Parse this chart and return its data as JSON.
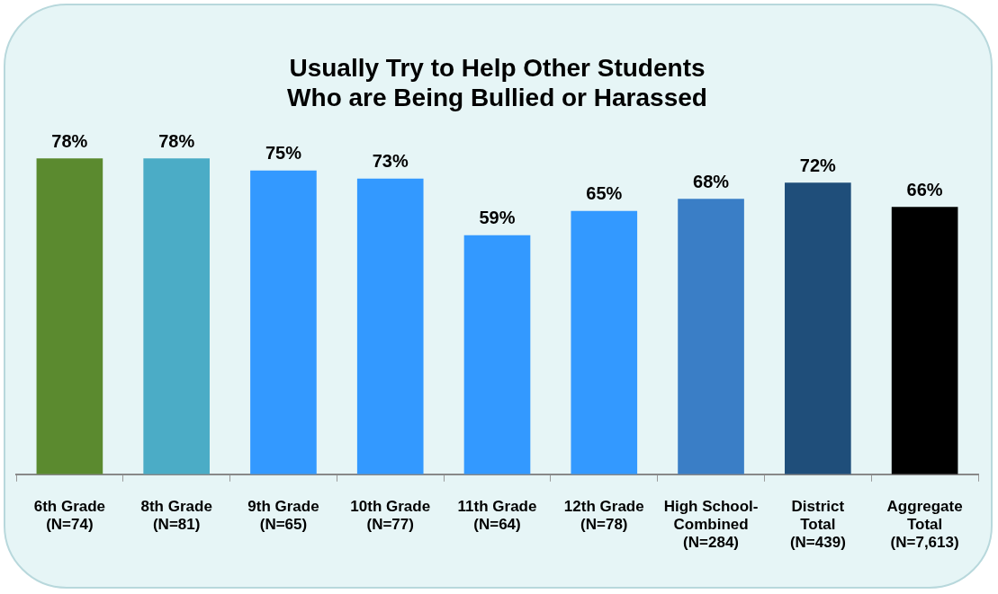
{
  "chart_data": {
    "type": "bar",
    "title": "Usually Try to Help Other Students\nWho are Being Bullied or Harassed",
    "categories": [
      "6th Grade\n(N=74)",
      "8th Grade\n(N=81)",
      "9th Grade\n(N=65)",
      "10th Grade\n(N=77)",
      "11th Grade\n(N=64)",
      "12th Grade\n(N=78)",
      "High School-\nCombined\n(N=284)",
      "District\nTotal\n(N=439)",
      "Aggregate\nTotal\n(N=7,613)"
    ],
    "values": [
      78,
      78,
      75,
      73,
      59,
      65,
      68,
      72,
      66
    ],
    "value_labels": [
      "78%",
      "78%",
      "75%",
      "73%",
      "59%",
      "65%",
      "68%",
      "72%",
      "66%"
    ],
    "colors": [
      "#5b8a2f",
      "#4bacc6",
      "#3399ff",
      "#3399ff",
      "#3399ff",
      "#3399ff",
      "#3a7ec6",
      "#1f4e7a",
      "#000000"
    ],
    "grid": false,
    "legend": false
  }
}
